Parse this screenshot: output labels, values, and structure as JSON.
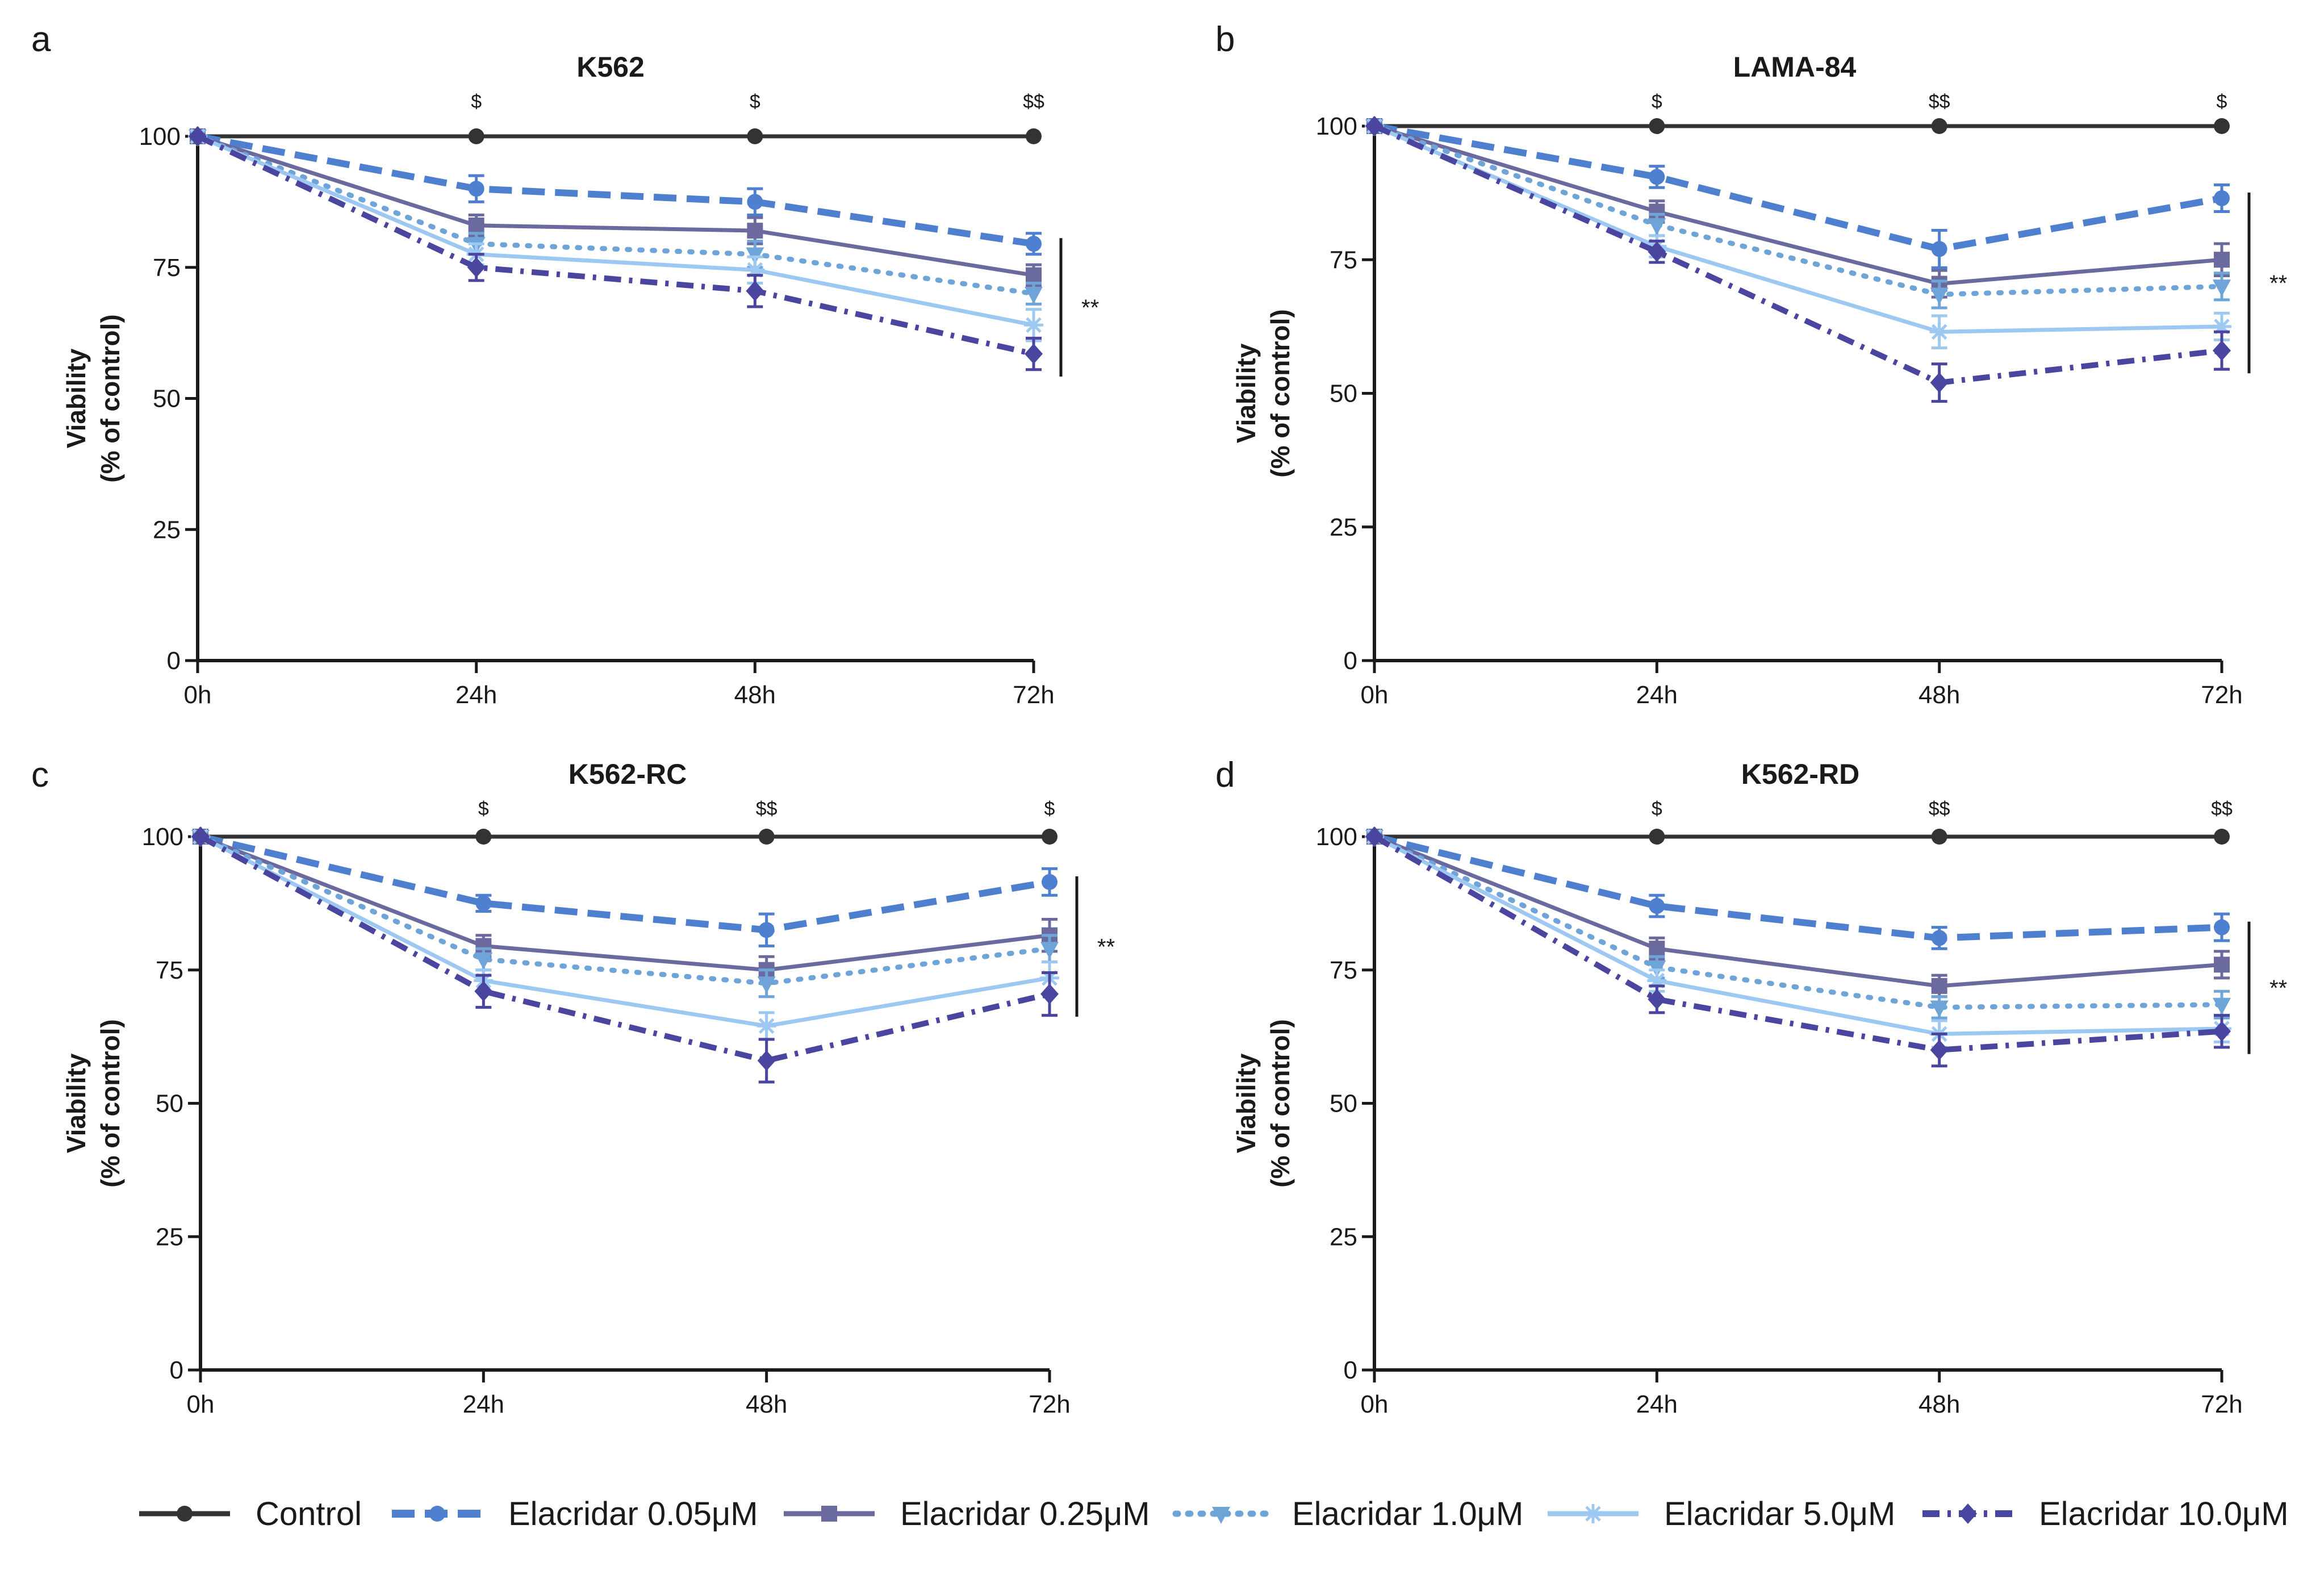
{
  "figure": {
    "legend": [
      {
        "name": "Control",
        "color": "#333333",
        "dash": "solid",
        "marker": "circle"
      },
      {
        "name": "Elacridar 0.05μM",
        "color": "#4f7fcf",
        "dash": "dashed",
        "marker": "circle"
      },
      {
        "name": "Elacridar 0.25μM",
        "color": "#6a6a9e",
        "dash": "solid",
        "marker": "square"
      },
      {
        "name": "Elacridar 1.0μM",
        "color": "#6fa4d8",
        "dash": "dotted",
        "marker": "triangle-down"
      },
      {
        "name": "Elacridar 5.0μM",
        "color": "#9dc8f2",
        "dash": "solid",
        "marker": "star"
      },
      {
        "name": "Elacridar 10.0μM",
        "color": "#4a46a0",
        "dash": "dashdot",
        "marker": "diamond"
      }
    ]
  },
  "chart_data": [
    {
      "panel": "a",
      "type": "line",
      "title": "K562",
      "xlabel": "",
      "ylabel": [
        "Viability",
        "(% of control)"
      ],
      "categories": [
        "0h",
        "24h",
        "48h",
        "72h"
      ],
      "yticks": [
        0,
        25,
        50,
        75,
        100
      ],
      "ylim": [
        0,
        100
      ],
      "annotations": [
        "$",
        "$",
        "$$"
      ],
      "significance": "**",
      "series": [
        {
          "name": "Control",
          "values": [
            100,
            100,
            100,
            100
          ],
          "errors": [
            0,
            0,
            0,
            0
          ]
        },
        {
          "name": "Elacridar 0.05μM",
          "values": [
            100,
            90,
            87.5,
            79.5
          ],
          "errors": [
            0,
            2.5,
            2.5,
            2
          ]
        },
        {
          "name": "Elacridar 0.25μM",
          "values": [
            100,
            83,
            82,
            73.5
          ],
          "errors": [
            0,
            2,
            2.5,
            2
          ]
        },
        {
          "name": "Elacridar 1.0μM",
          "values": [
            100,
            79.5,
            77.5,
            70
          ],
          "errors": [
            0,
            2,
            2.5,
            2
          ]
        },
        {
          "name": "Elacridar 5.0μM",
          "values": [
            100,
            77.5,
            74.5,
            64
          ],
          "errors": [
            0,
            2,
            2.5,
            3
          ]
        },
        {
          "name": "Elacridar 10.0μM",
          "values": [
            100,
            75,
            70.5,
            58.5
          ],
          "errors": [
            0,
            2.5,
            3,
            3
          ]
        }
      ]
    },
    {
      "panel": "b",
      "type": "line",
      "title": "LAMA-84",
      "xlabel": "",
      "ylabel": [
        "Viability",
        "(% of control)"
      ],
      "categories": [
        "0h",
        "24h",
        "48h",
        "72h"
      ],
      "yticks": [
        0,
        25,
        50,
        75,
        100
      ],
      "ylim": [
        0,
        100
      ],
      "annotations": [
        "$",
        "$$",
        "$"
      ],
      "significance": "**",
      "series": [
        {
          "name": "Control",
          "values": [
            100,
            100,
            100,
            100
          ],
          "errors": [
            0,
            0,
            0,
            0
          ]
        },
        {
          "name": "Elacridar 0.05μM",
          "values": [
            100,
            90.5,
            77,
            86.5
          ],
          "errors": [
            0,
            2,
            3.5,
            2.5
          ]
        },
        {
          "name": "Elacridar 0.25μM",
          "values": [
            100,
            84,
            70.5,
            75
          ],
          "errors": [
            0,
            2,
            2.5,
            3
          ]
        },
        {
          "name": "Elacridar 1.0μM",
          "values": [
            100,
            81.5,
            68.5,
            70
          ],
          "errors": [
            0,
            2,
            2.5,
            2.5
          ]
        },
        {
          "name": "Elacridar 5.0μM",
          "values": [
            100,
            77.5,
            61.5,
            62.5
          ],
          "errors": [
            0,
            2,
            3,
            2.5
          ]
        },
        {
          "name": "Elacridar 10.0μM",
          "values": [
            100,
            76.5,
            52,
            58
          ],
          "errors": [
            0,
            2,
            3.5,
            3.5
          ]
        }
      ]
    },
    {
      "panel": "c",
      "type": "line",
      "title": "K562-RC",
      "xlabel": "",
      "ylabel": [
        "Viability",
        "(% of control)"
      ],
      "categories": [
        "0h",
        "24h",
        "48h",
        "72h"
      ],
      "yticks": [
        0,
        25,
        50,
        75,
        100
      ],
      "ylim": [
        0,
        100
      ],
      "annotations": [
        "$",
        "$$",
        "$"
      ],
      "significance": "**",
      "series": [
        {
          "name": "Control",
          "values": [
            100,
            100,
            100,
            100
          ],
          "errors": [
            0,
            0,
            0,
            0
          ]
        },
        {
          "name": "Elacridar 0.05μM",
          "values": [
            100,
            87.5,
            82.5,
            91.5
          ],
          "errors": [
            0,
            1.5,
            3,
            2.5
          ]
        },
        {
          "name": "Elacridar 0.25μM",
          "values": [
            100,
            79.5,
            75,
            81.5
          ],
          "errors": [
            0,
            2,
            2.5,
            3
          ]
        },
        {
          "name": "Elacridar 1.0μM",
          "values": [
            100,
            77,
            72.5,
            79
          ],
          "errors": [
            0,
            2,
            2.5,
            2.5
          ]
        },
        {
          "name": "Elacridar 5.0μM",
          "values": [
            100,
            73,
            64.5,
            73.5
          ],
          "errors": [
            0,
            2,
            2.5,
            3
          ]
        },
        {
          "name": "Elacridar 10.0μM",
          "values": [
            100,
            71,
            58,
            70.5
          ],
          "errors": [
            0,
            3,
            4,
            4
          ]
        }
      ]
    },
    {
      "panel": "d",
      "type": "line",
      "title": "K562-RD",
      "xlabel": "",
      "ylabel": [
        "Viability",
        "(% of control)"
      ],
      "categories": [
        "0h",
        "24h",
        "48h",
        "72h"
      ],
      "yticks": [
        0,
        25,
        50,
        75,
        100
      ],
      "ylim": [
        0,
        100
      ],
      "annotations": [
        "$",
        "$$",
        "$$"
      ],
      "significance": "**",
      "series": [
        {
          "name": "Control",
          "values": [
            100,
            100,
            100,
            100
          ],
          "errors": [
            0,
            0,
            0,
            0
          ]
        },
        {
          "name": "Elacridar 0.05μM",
          "values": [
            100,
            87,
            81,
            83
          ],
          "errors": [
            0,
            2,
            2,
            2.5
          ]
        },
        {
          "name": "Elacridar 0.25μM",
          "values": [
            100,
            79,
            72,
            76
          ],
          "errors": [
            0,
            2,
            2,
            2.5
          ]
        },
        {
          "name": "Elacridar 1.0μM",
          "values": [
            100,
            75.5,
            68,
            68.5
          ],
          "errors": [
            0,
            2,
            2,
            2.5
          ]
        },
        {
          "name": "Elacridar 5.0μM",
          "values": [
            100,
            73,
            63,
            64
          ],
          "errors": [
            0,
            2,
            2.5,
            2.5
          ]
        },
        {
          "name": "Elacridar 10.0μM",
          "values": [
            100,
            69.5,
            60,
            63.5
          ],
          "errors": [
            0,
            2.5,
            3,
            3
          ]
        }
      ]
    }
  ]
}
